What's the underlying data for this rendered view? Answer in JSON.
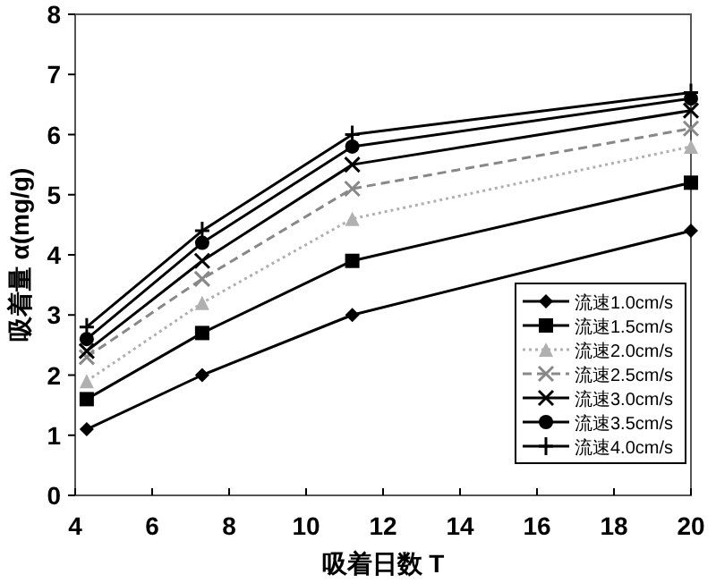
{
  "chart_data": {
    "type": "line",
    "xlabel": "吸着日数 T",
    "ylabel": "吸着量 α(mg/g)",
    "x": [
      4.3,
      7.3,
      11.2,
      20
    ],
    "xlim": [
      4,
      20
    ],
    "xticks": [
      4,
      6,
      8,
      10,
      12,
      14,
      16,
      18,
      20
    ],
    "ylim": [
      0,
      8
    ],
    "yticks": [
      0,
      1,
      2,
      3,
      4,
      5,
      6,
      7,
      8
    ],
    "grid": false,
    "legend": "bottom right",
    "series": [
      {
        "name": "流速1.0cm/s",
        "color": "#000000",
        "marker": "diamond",
        "line_style": "solid",
        "values": [
          1.1,
          2.0,
          3.0,
          4.4
        ]
      },
      {
        "name": "流速1.5cm/s",
        "color": "#000000",
        "marker": "square",
        "line_style": "solid",
        "values": [
          1.6,
          2.7,
          3.9,
          5.2
        ]
      },
      {
        "name": "流速2.0cm/s",
        "color": "#b0b0b0",
        "marker": "triangle",
        "line_style": "dotted",
        "values": [
          1.9,
          3.2,
          4.6,
          5.8
        ]
      },
      {
        "name": "流速2.5cm/s",
        "color": "#888888",
        "marker": "cross",
        "line_style": "dashed",
        "values": [
          2.3,
          3.6,
          5.1,
          6.1
        ]
      },
      {
        "name": "流速3.0cm/s",
        "color": "#000000",
        "marker": "cross",
        "line_style": "solid",
        "values": [
          2.4,
          3.9,
          5.5,
          6.4
        ]
      },
      {
        "name": "流速3.5cm/s",
        "color": "#000000",
        "marker": "circle",
        "line_style": "solid",
        "values": [
          2.6,
          4.2,
          5.8,
          6.6
        ]
      },
      {
        "name": "流速4.0cm/s",
        "color": "#000000",
        "marker": "plus",
        "line_style": "solid",
        "values": [
          2.8,
          4.4,
          6.0,
          6.7
        ]
      }
    ]
  }
}
